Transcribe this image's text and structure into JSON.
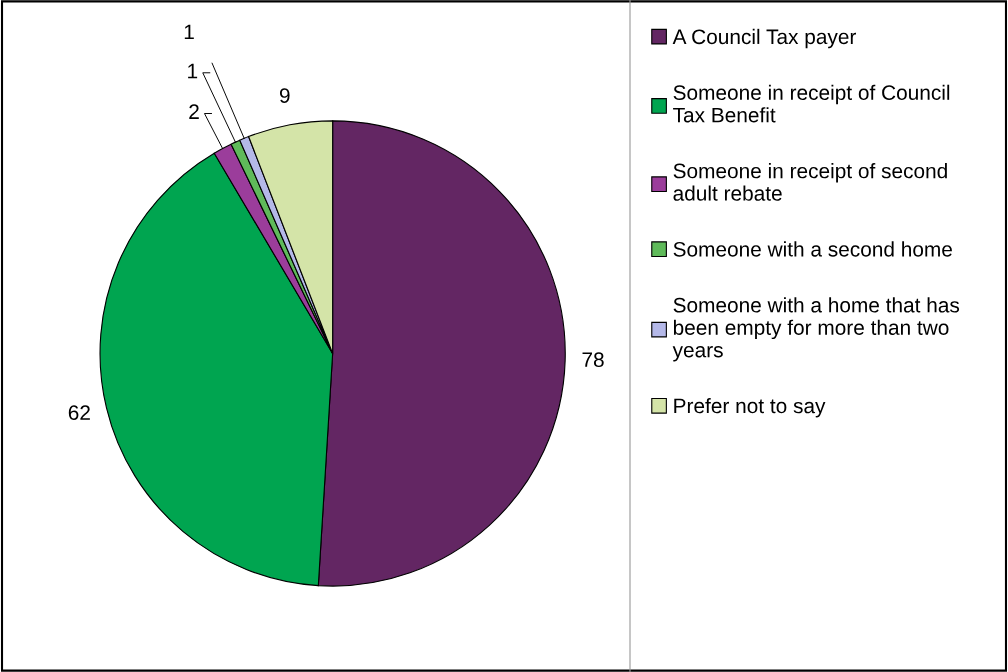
{
  "chart_data": {
    "type": "pie",
    "categories": [
      "A Council Tax payer",
      "Someone in receipt of Council Tax Benefit",
      "Someone in receipt of second adult rebate",
      "Someone with a second home",
      "Someone with a home that has been empty for more than two years",
      "Prefer not to say"
    ],
    "values": [
      78,
      62,
      2,
      1,
      1,
      9
    ],
    "colors": [
      "#632663",
      "#00a550",
      "#9b3d9b",
      "#5fba5a",
      "#b4b8e8",
      "#d4e4a8"
    ],
    "data_labels": true,
    "legend": "right"
  }
}
